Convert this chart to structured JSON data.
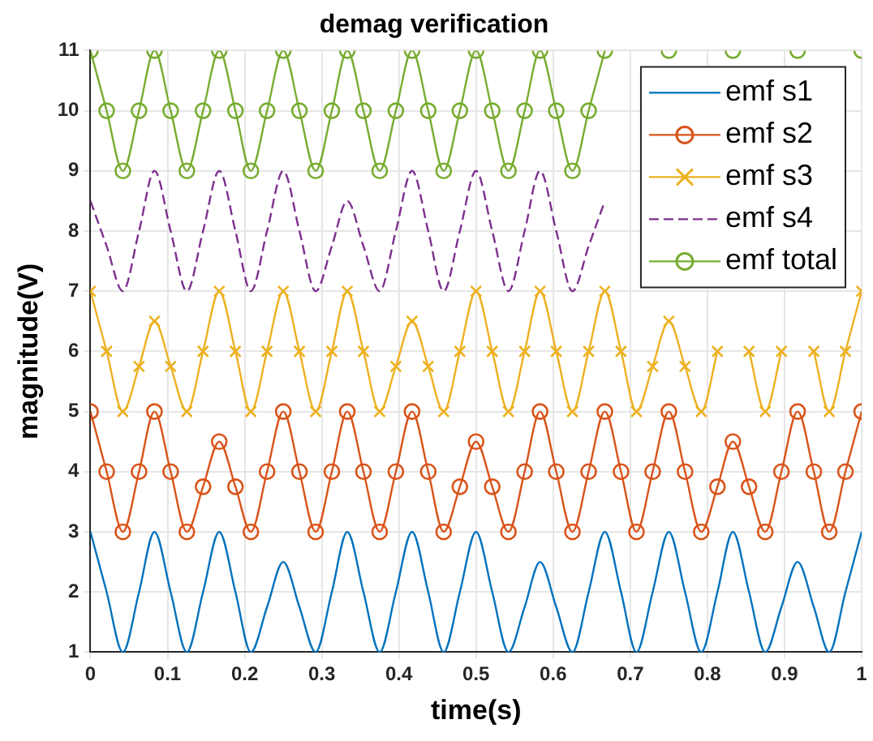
{
  "chart_data": {
    "type": "line",
    "title": "demag verification",
    "xlabel": "time(s)",
    "ylabel": "magnitude(V)",
    "x": [
      0,
      0.021,
      0.042,
      0.063,
      0.083,
      0.104,
      0.125,
      0.146,
      0.167,
      0.188,
      0.208,
      0.229,
      0.25,
      0.271,
      0.292,
      0.313,
      0.333,
      0.354,
      0.375,
      0.396,
      0.417,
      0.438,
      0.458,
      0.479,
      0.5,
      0.521,
      0.542,
      0.563,
      0.583,
      0.604,
      0.625,
      0.646,
      0.667,
      0.688,
      0.708,
      0.729,
      0.75,
      0.771,
      0.792,
      0.813,
      0.833,
      0.854,
      0.875,
      0.896,
      0.917,
      0.938,
      0.958,
      0.979,
      1
    ],
    "xlim": [
      0,
      1
    ],
    "xticks": [
      0,
      0.1,
      0.2,
      0.3,
      0.4,
      0.5,
      0.6,
      0.7,
      0.8,
      0.9,
      1
    ],
    "ylim": [
      1,
      11
    ],
    "yticks": [
      1,
      2,
      3,
      4,
      5,
      6,
      7,
      8,
      9,
      10,
      11
    ],
    "grid": true,
    "legend": "top right",
    "series": [
      {
        "name": "emf s1",
        "color": "#0072bd",
        "marker": "none",
        "line_style": "solid",
        "values": [
          3,
          2,
          1,
          2,
          3,
          2,
          1,
          2,
          3,
          2,
          1,
          1.75,
          2.5,
          1.75,
          1,
          2,
          3,
          2,
          1,
          2,
          3,
          2,
          1,
          2,
          3,
          2,
          1,
          1.75,
          2.5,
          1.75,
          1,
          2,
          3,
          2,
          1,
          2,
          3,
          2,
          1,
          2,
          3,
          2,
          1,
          1.75,
          2.5,
          1.75,
          1,
          2,
          3
        ]
      },
      {
        "name": "emf s2",
        "color": "#d95319",
        "marker": "circle",
        "line_style": "solid",
        "values": [
          5,
          4,
          3,
          4,
          5,
          4,
          3,
          3.75,
          4.5,
          3.75,
          3,
          4,
          5,
          4,
          3,
          4,
          5,
          4,
          3,
          4,
          5,
          4,
          3,
          3.75,
          4.5,
          3.75,
          3,
          4,
          5,
          4,
          3,
          4,
          5,
          4,
          3,
          4,
          5,
          4,
          3,
          3.75,
          4.5,
          3.75,
          3,
          4,
          5,
          4,
          3,
          4,
          5
        ]
      },
      {
        "name": "emf s3",
        "color": "#edb120",
        "marker": "cross",
        "line_style": "solid",
        "values": [
          7,
          6,
          5,
          5.75,
          6.5,
          5.75,
          5,
          6,
          7,
          6,
          5,
          6,
          7,
          6,
          5,
          6,
          7,
          6,
          5,
          5.75,
          6.5,
          5.75,
          5,
          6,
          7,
          6,
          5,
          6,
          7,
          6,
          5,
          6,
          7,
          6,
          5,
          5.75,
          6.5,
          5.75,
          5,
          6,
          null,
          6,
          5,
          6,
          null,
          6,
          5,
          6,
          7
        ]
      },
      {
        "name": "emf s4",
        "color": "#7e2f8e",
        "marker": "none",
        "line_style": "dashed",
        "values": [
          8.5,
          7.75,
          7,
          8,
          9,
          8,
          7,
          8,
          9,
          8,
          7,
          8,
          9,
          8,
          7,
          7.75,
          8.5,
          7.75,
          7,
          8,
          9,
          8,
          7,
          8,
          9,
          8,
          7,
          8,
          9,
          8,
          7,
          7.75,
          8.5,
          null,
          null,
          null,
          null,
          null,
          null,
          null,
          null,
          null,
          null,
          null,
          null,
          null,
          null,
          null,
          null
        ]
      },
      {
        "name": "emf total",
        "color": "#77ac30",
        "marker": "circle",
        "line_style": "solid",
        "values": [
          11,
          10,
          9,
          10,
          11,
          10,
          9,
          10,
          11,
          10,
          9,
          10,
          11,
          10,
          9,
          10,
          11,
          10,
          9,
          10,
          11,
          10,
          9,
          10,
          11,
          10,
          9,
          10,
          11,
          10,
          9,
          10,
          11,
          null,
          null,
          null,
          11,
          null,
          null,
          null,
          11,
          null,
          null,
          null,
          11,
          null,
          null,
          null,
          11
        ]
      }
    ]
  }
}
